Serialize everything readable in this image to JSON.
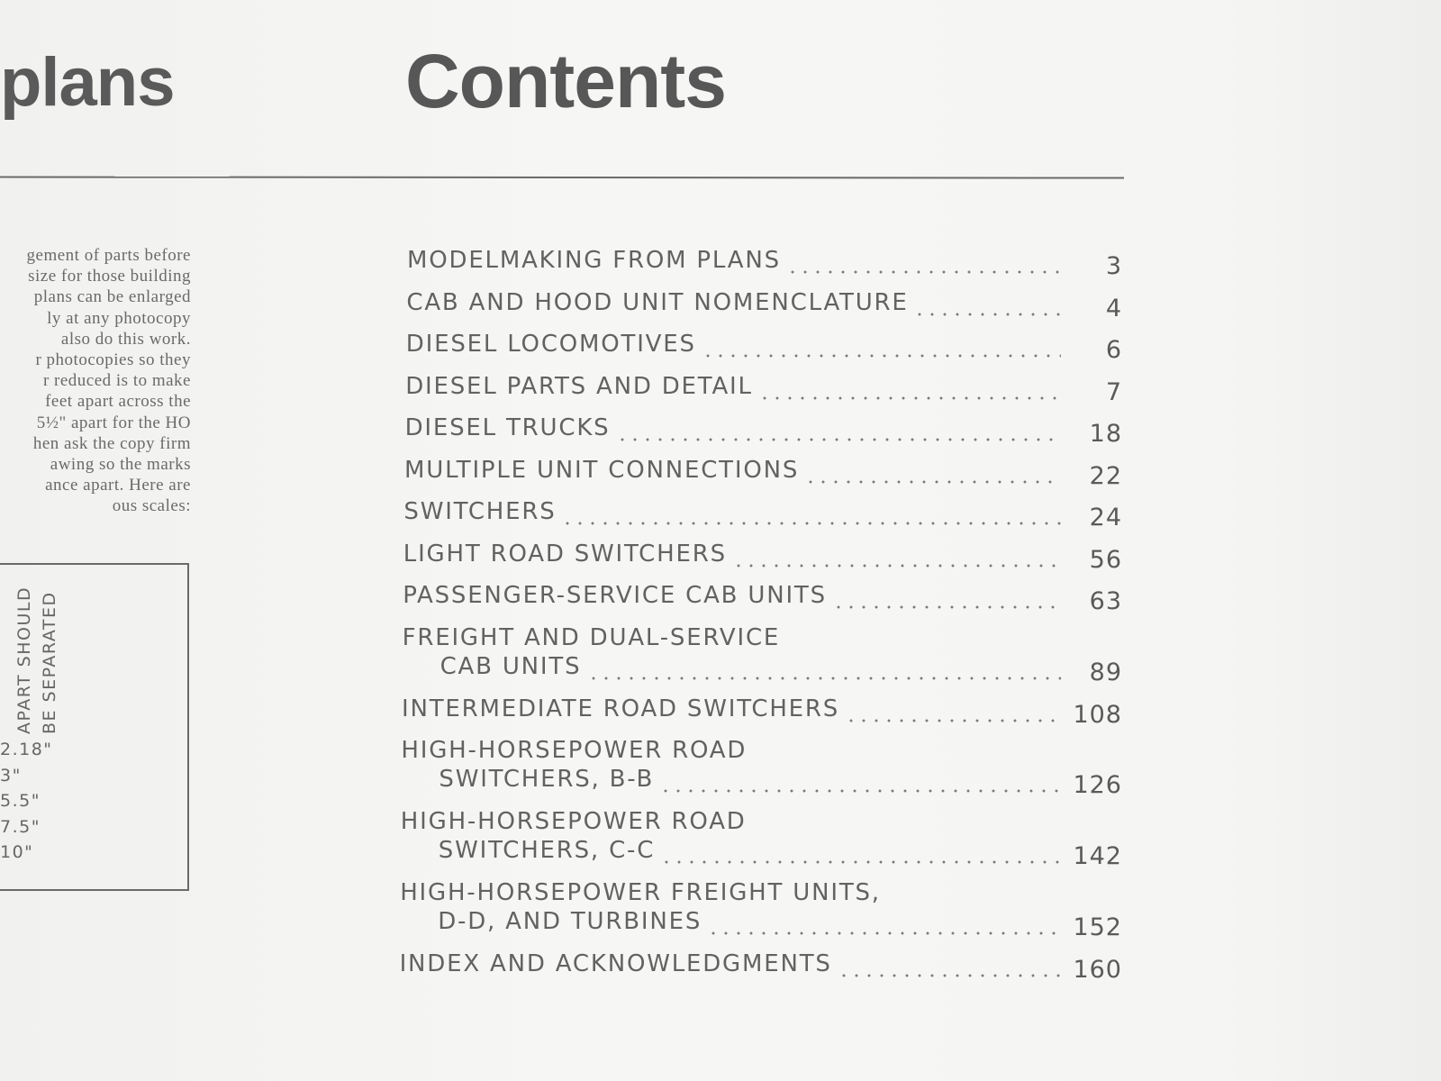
{
  "left_page": {
    "heading": "plans",
    "paragraph_lines": [
      "gement of parts before",
      "size for those building",
      "plans can be enlarged",
      "ly at any photocopy",
      "also do this work.",
      "r photocopies so they",
      "r reduced is to make",
      "feet apart across the",
      "5½\" apart for the HO",
      "hen ask the copy firm",
      "awing so the marks",
      "ance apart. Here are",
      "ous scales:"
    ],
    "box": {
      "column_headers": [
        "APART SHOULD",
        "BE SEPARATED"
      ],
      "values": [
        "2.18\"",
        "3\"",
        "5.5\"",
        "7.5\"",
        "10\""
      ]
    }
  },
  "contents": {
    "title": "Contents",
    "entries": [
      {
        "title": "MODELMAKING FROM PLANS",
        "page": 3
      },
      {
        "title": "CAB AND HOOD UNIT NOMENCLATURE",
        "page": 4
      },
      {
        "title": "DIESEL LOCOMOTIVES",
        "page": 6
      },
      {
        "title": "DIESEL PARTS AND DETAIL",
        "page": 7
      },
      {
        "title": "DIESEL TRUCKS",
        "page": 18
      },
      {
        "title": "MULTIPLE UNIT CONNECTIONS",
        "page": 22
      },
      {
        "title": "SWITCHERS",
        "page": 24
      },
      {
        "title": "LIGHT ROAD SWITCHERS",
        "page": 56
      },
      {
        "title": "PASSENGER-SERVICE CAB UNITS",
        "page": 63
      },
      {
        "title": "FREIGHT AND DUAL-SERVICE",
        "continuation": "CAB UNITS",
        "page": 89
      },
      {
        "title": "INTERMEDIATE ROAD SWITCHERS",
        "page": 108
      },
      {
        "title": "HIGH-HORSEPOWER ROAD",
        "continuation": "SWITCHERS, B-B",
        "page": 126
      },
      {
        "title": "HIGH-HORSEPOWER ROAD",
        "continuation": "SWITCHERS, C-C",
        "page": 142
      },
      {
        "title": "HIGH-HORSEPOWER FREIGHT UNITS,",
        "continuation": "D-D, AND TURBINES",
        "page": 152
      },
      {
        "title": "INDEX AND ACKNOWLEDGMENTS",
        "page": 160
      }
    ]
  }
}
